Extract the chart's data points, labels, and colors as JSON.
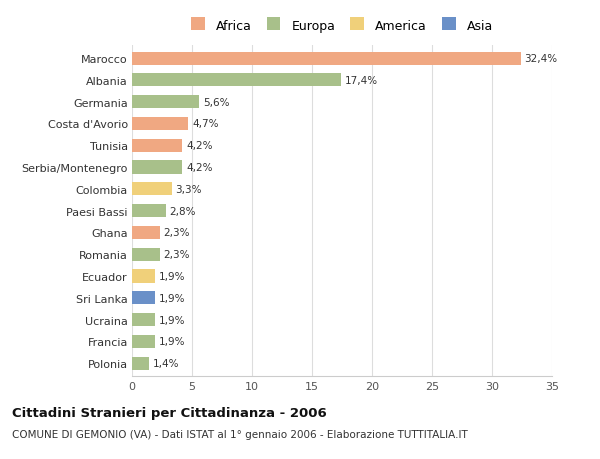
{
  "countries": [
    "Marocco",
    "Albania",
    "Germania",
    "Costa d'Avorio",
    "Tunisia",
    "Serbia/Montenegro",
    "Colombia",
    "Paesi Bassi",
    "Ghana",
    "Romania",
    "Ecuador",
    "Sri Lanka",
    "Ucraina",
    "Francia",
    "Polonia"
  ],
  "values": [
    32.4,
    17.4,
    5.6,
    4.7,
    4.2,
    4.2,
    3.3,
    2.8,
    2.3,
    2.3,
    1.9,
    1.9,
    1.9,
    1.9,
    1.4
  ],
  "labels": [
    "32,4%",
    "17,4%",
    "5,6%",
    "4,7%",
    "4,2%",
    "4,2%",
    "3,3%",
    "2,8%",
    "2,3%",
    "2,3%",
    "1,9%",
    "1,9%",
    "1,9%",
    "1,9%",
    "1,4%"
  ],
  "continents": [
    "Africa",
    "Europa",
    "Europa",
    "Africa",
    "Africa",
    "Europa",
    "America",
    "Europa",
    "Africa",
    "Europa",
    "America",
    "Asia",
    "Europa",
    "Europa",
    "Europa"
  ],
  "colors": {
    "Africa": "#F0A882",
    "Europa": "#A8C08A",
    "America": "#F0D07A",
    "Asia": "#6A90C8"
  },
  "legend_order": [
    "Africa",
    "Europa",
    "America",
    "Asia"
  ],
  "title": "Cittadini Stranieri per Cittadinanza - 2006",
  "subtitle": "COMUNE DI GEMONIO (VA) - Dati ISTAT al 1° gennaio 2006 - Elaborazione TUTTITALIA.IT",
  "xlim": [
    0,
    35
  ],
  "xticks": [
    0,
    5,
    10,
    15,
    20,
    25,
    30,
    35
  ],
  "background_color": "#ffffff",
  "bar_height": 0.6
}
